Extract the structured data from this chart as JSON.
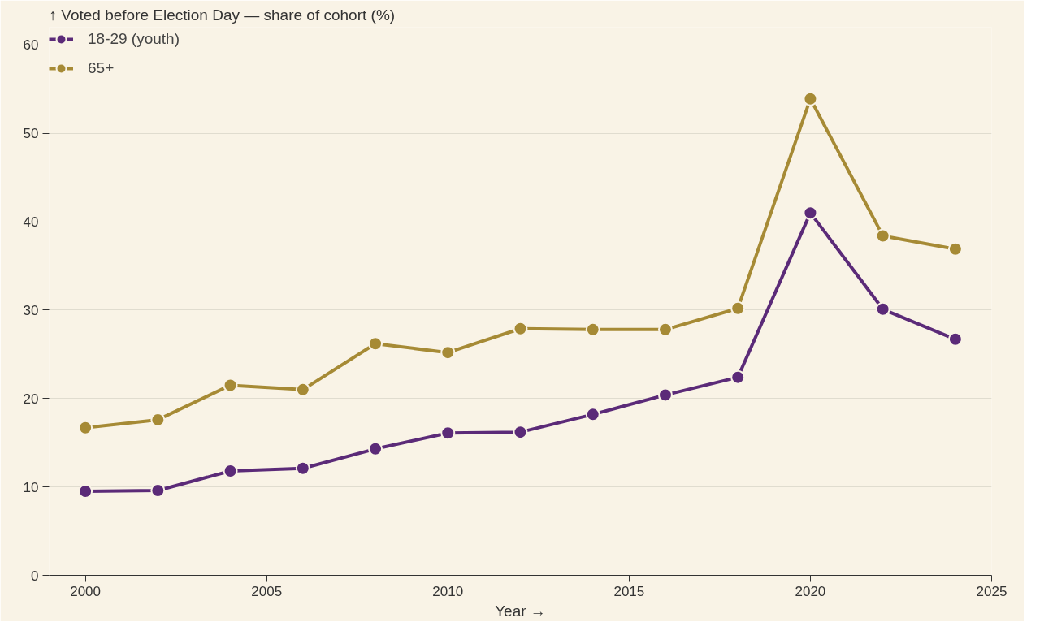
{
  "chart_data": {
    "type": "line",
    "ylabel": "↑ Voted before Election Day — share of cohort (%)",
    "xlabel": "Year →",
    "x": [
      2000,
      2002,
      2004,
      2006,
      2008,
      2010,
      2012,
      2014,
      2016,
      2018,
      2020,
      2022,
      2024
    ],
    "series": [
      {
        "name": "18-29 (youth)",
        "color": "#5b2a78",
        "values": [
          9.5,
          9.6,
          11.8,
          12.1,
          14.3,
          16.1,
          16.2,
          18.2,
          20.4,
          22.4,
          41.0,
          30.1,
          26.7
        ]
      },
      {
        "name": "65+",
        "color": "#a68a35",
        "values": [
          16.7,
          17.6,
          21.5,
          21.0,
          26.2,
          25.2,
          27.9,
          27.8,
          27.8,
          30.2,
          53.9,
          38.4,
          36.9
        ]
      }
    ],
    "xlim": [
      1999,
      2025
    ],
    "xticks": [
      2000,
      2005,
      2010,
      2015,
      2020,
      2025
    ],
    "ylim": [
      0,
      62
    ],
    "yticks": [
      0,
      10,
      20,
      30,
      40,
      50,
      60
    ],
    "grid": "y",
    "legend": "top left",
    "marker": "circle",
    "line_style": "solid"
  }
}
